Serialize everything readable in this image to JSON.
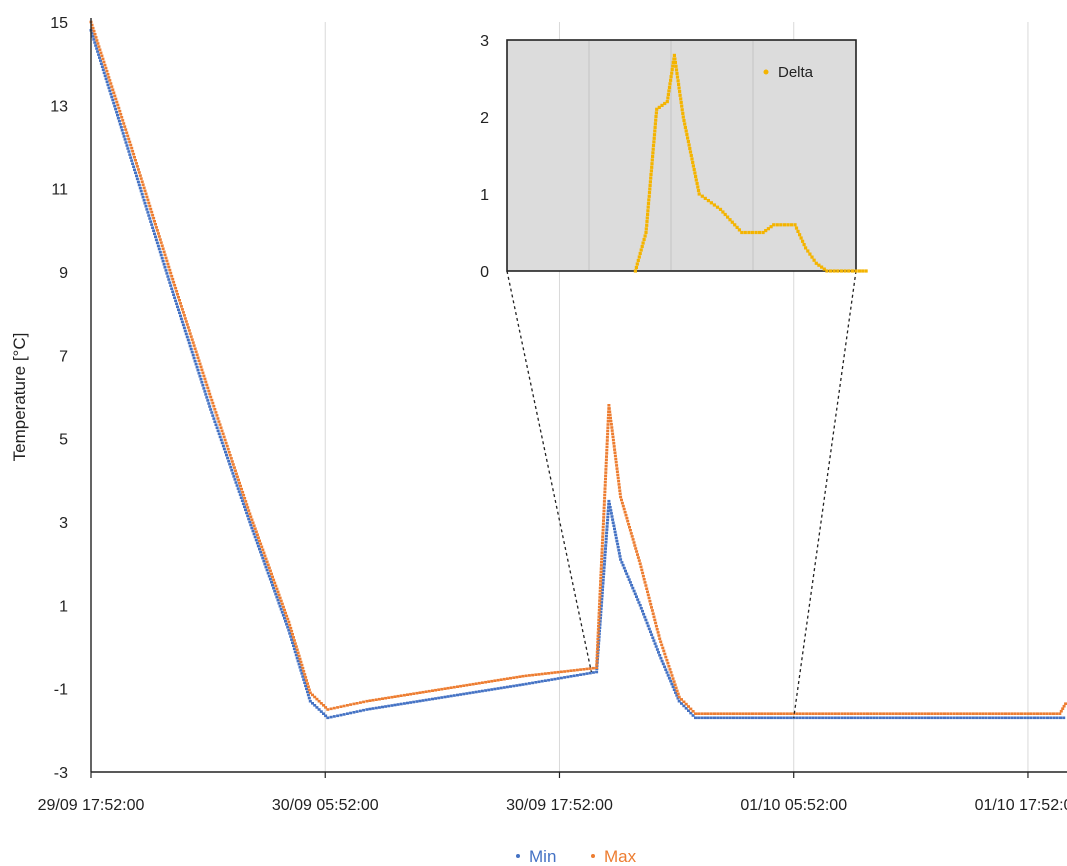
{
  "chart_data": [
    {
      "type": "scatter",
      "title": "",
      "ylabel": "Temperature [°C]",
      "xlabel": "",
      "ylim": [
        -3,
        15
      ],
      "yticks": [
        15,
        13,
        11,
        9,
        7,
        5,
        3,
        1,
        -1,
        -3
      ],
      "xlim_hours": [
        0,
        50
      ],
      "xticks": [
        "29/09 17:52:00",
        "30/09 05:52:00",
        "30/09 17:52:00",
        "01/10 05:52:00",
        "01/10 17:52:00"
      ],
      "grid": "vertical",
      "legend_position": "bottom-center",
      "series": [
        {
          "name": "Min",
          "color": "#4472C4",
          "points": [
            [
              "29/09 17:52:00",
              14.8
            ],
            [
              "29/09 20:00",
              11.6
            ],
            [
              "29/09 22:00",
              8.6
            ],
            [
              "30/09 00:00",
              5.7
            ],
            [
              "30/09 02:00",
              3.0
            ],
            [
              "30/09 04:00",
              0.4
            ],
            [
              "30/09 05:06",
              -1.3
            ],
            [
              "30/09 06:00",
              -1.7
            ],
            [
              "30/09 08:00",
              -1.5
            ],
            [
              "30/09 12:00",
              -1.2
            ],
            [
              "30/09 16:00",
              -0.9
            ],
            [
              "30/09 19:46",
              -0.6
            ],
            [
              "30/09 20:24",
              3.5
            ],
            [
              "30/09 21:00",
              2.1
            ],
            [
              "30/09 22:00",
              1.0
            ],
            [
              "30/09 23:00",
              -0.2
            ],
            [
              "01/10 00:00",
              -1.3
            ],
            [
              "01/10 00:50",
              -1.7
            ],
            [
              "01/10 05:52:00",
              -1.7
            ],
            [
              "01/10 17:52:00",
              -1.7
            ],
            [
              "01/10 19:52",
              -1.7
            ]
          ]
        },
        {
          "name": "Max",
          "color": "#ED7D31",
          "points": [
            [
              "29/09 17:52:00",
              15.0
            ],
            [
              "29/09 20:00",
              11.9
            ],
            [
              "29/09 22:00",
              8.9
            ],
            [
              "30/09 00:00",
              6.0
            ],
            [
              "30/09 02:00",
              3.2
            ],
            [
              "30/09 04:00",
              0.6
            ],
            [
              "30/09 05:06",
              -1.1
            ],
            [
              "30/09 06:00",
              -1.5
            ],
            [
              "30/09 08:00",
              -1.3
            ],
            [
              "30/09 12:00",
              -1.0
            ],
            [
              "30/09 16:00",
              -0.7
            ],
            [
              "30/09 19:46",
              -0.5
            ],
            [
              "30/09 20:24",
              5.8
            ],
            [
              "30/09 21:00",
              3.6
            ],
            [
              "30/09 22:00",
              2.0
            ],
            [
              "30/09 23:00",
              0.2
            ],
            [
              "01/10 00:00",
              -1.2
            ],
            [
              "01/10 00:50",
              -1.6
            ],
            [
              "01/10 05:52:00",
              -1.6
            ],
            [
              "01/10 17:52:00",
              -1.6
            ],
            [
              "01/10 19:30",
              -1.6
            ],
            [
              "01/10 19:52",
              -1.3
            ]
          ]
        }
      ]
    },
    {
      "type": "scatter",
      "title": "",
      "ylim": [
        0,
        3
      ],
      "yticks": [
        3,
        2,
        1,
        0
      ],
      "xlim_hours": [
        19.6,
        36
      ],
      "grid": "vertical",
      "legend_position": "top-right",
      "series": [
        {
          "name": "Delta",
          "color": "#F4B400",
          "points": [
            [
              "30/09 19:30",
              0.0
            ],
            [
              "30/09 20:00",
              0.5
            ],
            [
              "30/09 20:30",
              2.1
            ],
            [
              "30/09 21:00",
              2.2
            ],
            [
              "30/09 21:20",
              2.8
            ],
            [
              "30/09 21:45",
              2.0
            ],
            [
              "30/09 22:30",
              1.0
            ],
            [
              "30/09 23:30",
              0.8
            ],
            [
              "01/10 00:30",
              0.5
            ],
            [
              "01/10 01:30",
              0.5
            ],
            [
              "01/10 02:00",
              0.6
            ],
            [
              "01/10 03:00",
              0.6
            ],
            [
              "01/10 03:30",
              0.3
            ],
            [
              "01/10 04:00",
              0.1
            ],
            [
              "01/10 04:30",
              0.0
            ],
            [
              "01/10 05:52:00",
              0.0
            ],
            [
              "01/10 06:30",
              0.0
            ]
          ]
        }
      ]
    }
  ]
}
